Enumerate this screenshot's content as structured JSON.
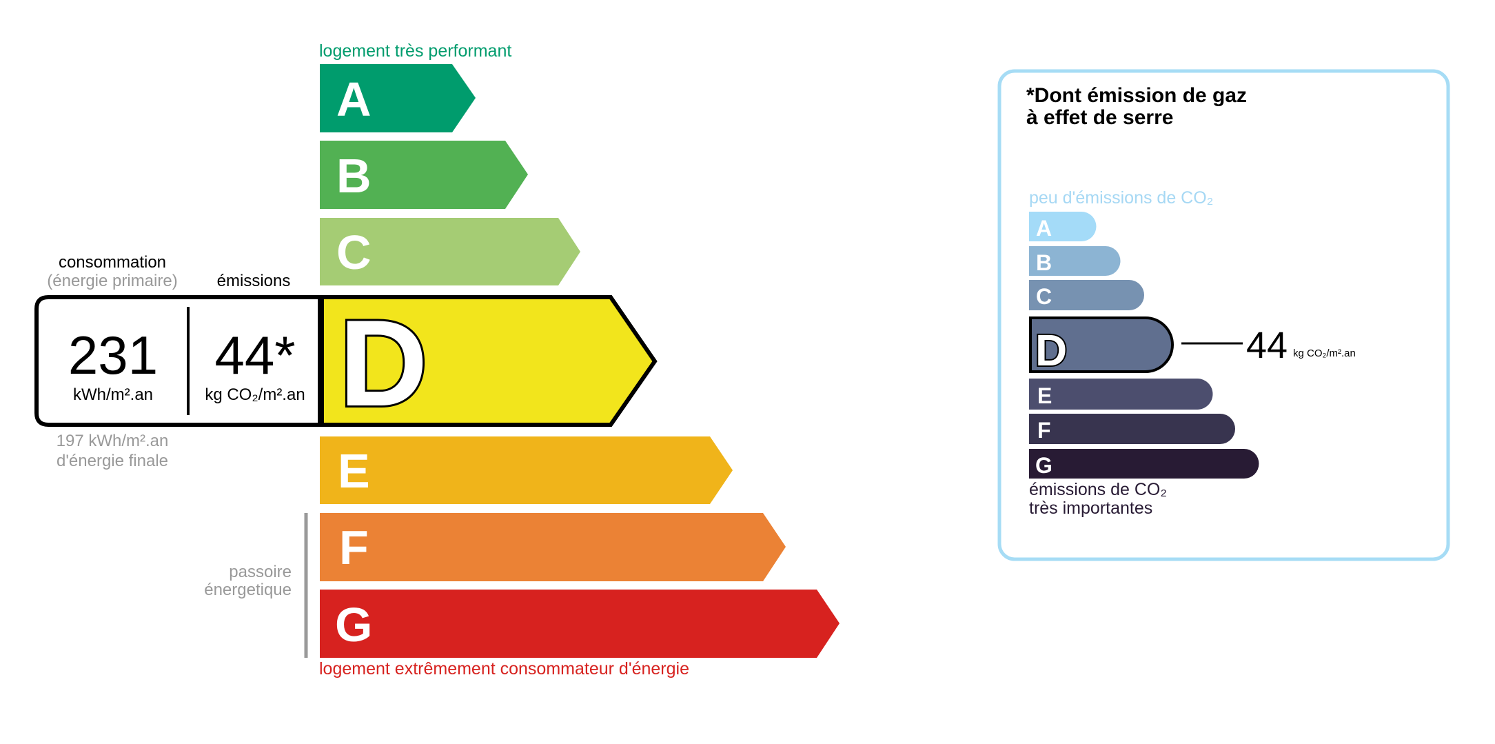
{
  "energy": {
    "top_label": "logement très performant",
    "bottom_label": "logement extrêmement consommateur d'énergie",
    "passoire_label_1": "passoire",
    "passoire_label_2": "énergetique",
    "classes": [
      {
        "letter": "A",
        "color": "#009c6d"
      },
      {
        "letter": "B",
        "color": "#52b153"
      },
      {
        "letter": "C",
        "color": "#a5cc74"
      },
      {
        "letter": "D",
        "color": "#f2e51c"
      },
      {
        "letter": "E",
        "color": "#f0b41a"
      },
      {
        "letter": "F",
        "color": "#eb8235"
      },
      {
        "letter": "G",
        "color": "#d7221f"
      }
    ],
    "current_class": "D",
    "consumption_label": "consommation",
    "consumption_sublabel": "(énergie primaire)",
    "emissions_label": "émissions",
    "consumption_value": "231",
    "consumption_unit": "kWh/m².an",
    "emissions_value": "44*",
    "emissions_unit": "kg CO₂/m².an",
    "final_energy_value": "197 kWh/m².an",
    "final_energy_label": "d'énergie finale"
  },
  "ges": {
    "title_line1": "*Dont émission de gaz",
    "title_line2": "à effet de serre",
    "top_label": "peu d'émissions de CO₂",
    "bottom_label_1": "émissions de CO₂",
    "bottom_label_2": "très importantes",
    "classes": [
      {
        "letter": "A",
        "color": "#a4dbf8"
      },
      {
        "letter": "B",
        "color": "#8cb4d3"
      },
      {
        "letter": "C",
        "color": "#7792b1"
      },
      {
        "letter": "D",
        "color": "#606f8f"
      },
      {
        "letter": "E",
        "color": "#4c4e6e"
      },
      {
        "letter": "F",
        "color": "#38344f"
      },
      {
        "letter": "G",
        "color": "#281b34"
      }
    ],
    "current_class": "D",
    "value": "44",
    "unit": "kg CO₂/m².an",
    "border_color": "#a6dcf5"
  }
}
